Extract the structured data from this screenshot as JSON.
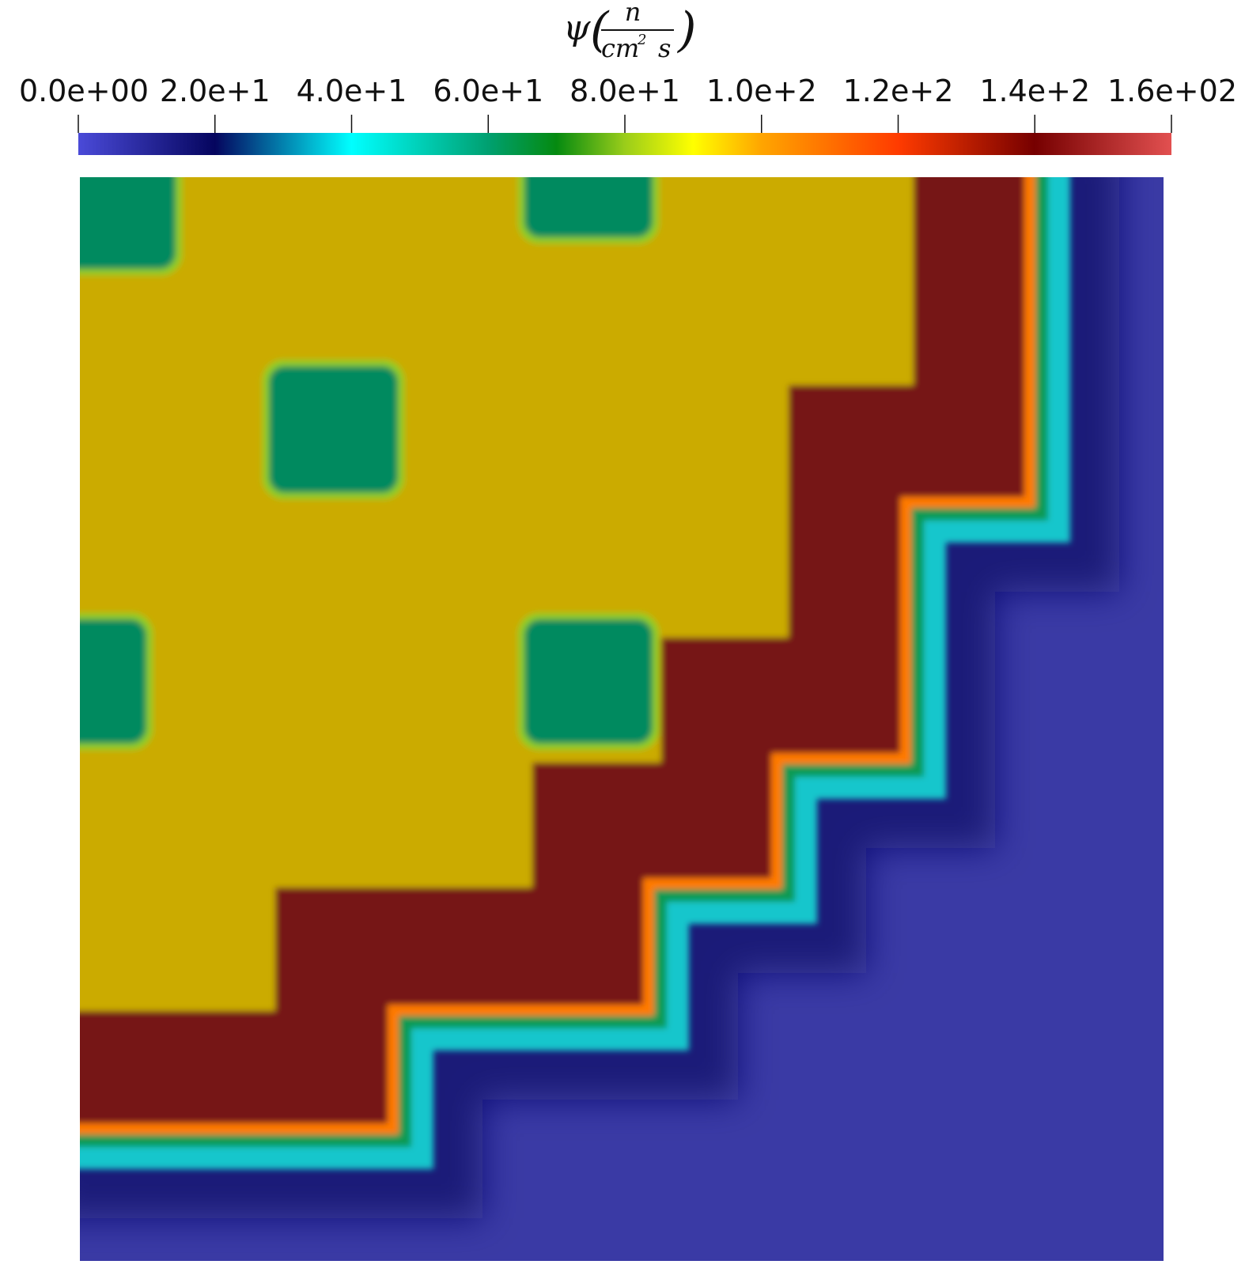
{
  "chart_data": {
    "type": "heatmap",
    "title": "",
    "colorbar": {
      "title": {
        "symbol": "ψ",
        "numerator": "n",
        "denominator": "cm",
        "exponent": "2",
        "denominator_tail": "s"
      },
      "range": [
        0,
        160
      ],
      "orientation": "horizontal",
      "placement": "top",
      "colormap": "turbo-like",
      "ticks": [
        {
          "value": 0,
          "label": "0.0e+00"
        },
        {
          "value": 20,
          "label": "2.0e+1"
        },
        {
          "value": 40,
          "label": "4.0e+1"
        },
        {
          "value": 60,
          "label": "6.0e+1"
        },
        {
          "value": 80,
          "label": "8.0e+1"
        },
        {
          "value": 100,
          "label": "1.0e+2"
        },
        {
          "value": 120,
          "label": "1.2e+2"
        },
        {
          "value": 140,
          "label": "1.4e+2"
        },
        {
          "value": 160,
          "label": "1.6e+02"
        }
      ],
      "stops": [
        {
          "value": 0,
          "color": "#4a4ad8"
        },
        {
          "value": 20,
          "color": "#05055e"
        },
        {
          "value": 40,
          "color": "#00ffff"
        },
        {
          "value": 60,
          "color": "#00a070"
        },
        {
          "value": 70,
          "color": "#058a10"
        },
        {
          "value": 80,
          "color": "#9acd1a"
        },
        {
          "value": 90,
          "color": "#ffff00"
        },
        {
          "value": 100,
          "color": "#ffa500"
        },
        {
          "value": 120,
          "color": "#ff3b00"
        },
        {
          "value": 140,
          "color": "#760000"
        },
        {
          "value": 160,
          "color": "#e25050"
        }
      ]
    },
    "field": {
      "description_values": {
        "background": 2,
        "outer_plateau": 95,
        "mid_band": 142,
        "inclusion": 62
      },
      "colors": {
        "background": "#3a3aa5",
        "outer_plateau": "#cbab00",
        "mid_band": "#761515",
        "inclusion": "#008a5e"
      }
    }
  }
}
